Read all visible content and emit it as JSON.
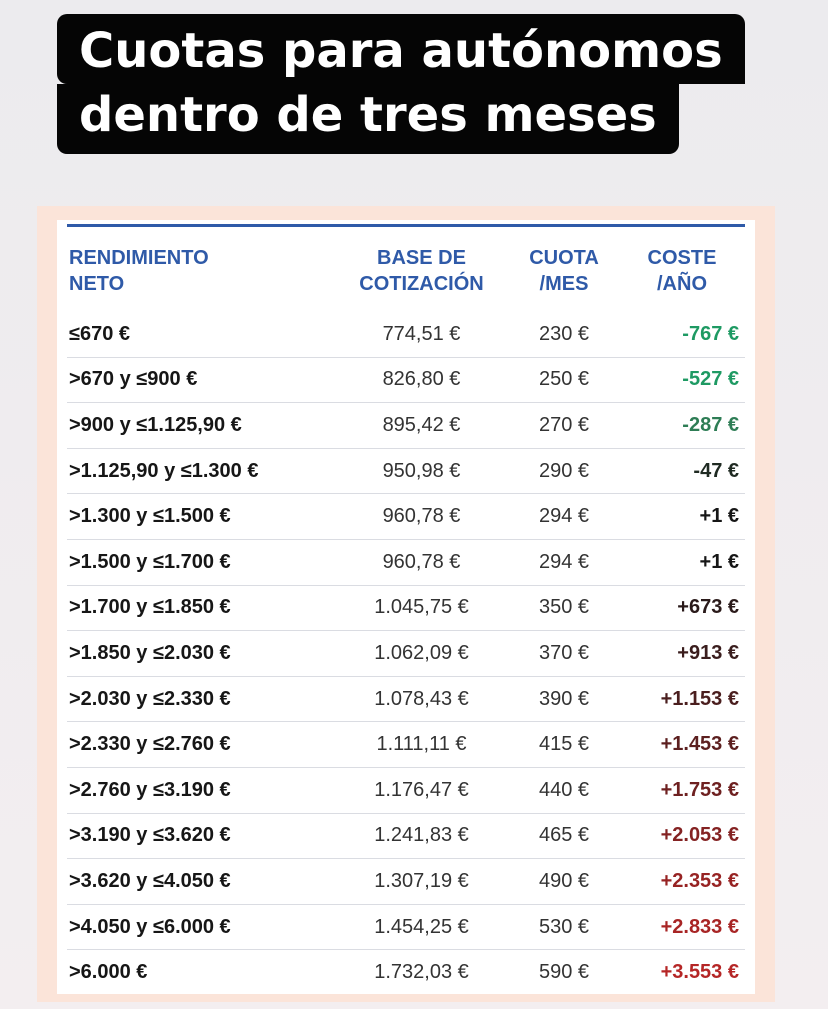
{
  "headline": {
    "line1": "Cuotas para autónomos",
    "line2": "dentro de tres meses"
  },
  "table": {
    "headers": {
      "col1": [
        "RENDIMIENTO",
        "NETO"
      ],
      "col2": [
        "BASE DE",
        "COTIZACIÓN"
      ],
      "col3": [
        "CUOTA",
        "/MES"
      ],
      "col4": [
        "COSTE",
        "/AÑO"
      ]
    },
    "rows": [
      {
        "rendimiento": "≤670 €",
        "base": "774,51 €",
        "cuota": "230 €",
        "coste": "-767 €",
        "color": "#1e9a63"
      },
      {
        "rendimiento": ">670 y ≤900 €",
        "base": "826,80 €",
        "cuota": "250 €",
        "coste": "-527 €",
        "color": "#1e9a63"
      },
      {
        "rendimiento": ">900 y ≤1.125,90 €",
        "base": "895,42 €",
        "cuota": "270 €",
        "coste": "-287 €",
        "color": "#2e7d55"
      },
      {
        "rendimiento": ">1.125,90 y ≤1.300 €",
        "base": "950,98 €",
        "cuota": "290 €",
        "coste": "-47 €",
        "color": "#1f2a22"
      },
      {
        "rendimiento": ">1.300 y ≤1.500 €",
        "base": "960,78 €",
        "cuota": "294 €",
        "coste": "+1 €",
        "color": "#161616"
      },
      {
        "rendimiento": ">1.500 y ≤1.700 €",
        "base": "960,78 €",
        "cuota": "294 €",
        "coste": "+1 €",
        "color": "#161616"
      },
      {
        "rendimiento": ">1.700 y ≤1.850 €",
        "base": "1.045,75 €",
        "cuota": "350 €",
        "coste": "+673 €",
        "color": "#2a1a1a"
      },
      {
        "rendimiento": ">1.850 y ≤2.030 €",
        "base": "1.062,09 €",
        "cuota": "370 €",
        "coste": "+913 €",
        "color": "#3a1d1d"
      },
      {
        "rendimiento": ">2.030 y ≤2.330 €",
        "base": "1.078,43 €",
        "cuota": "390 €",
        "coste": "+1.153 €",
        "color": "#4a1e1e"
      },
      {
        "rendimiento": ">2.330 y ≤2.760 €",
        "base": "1.111,11 €",
        "cuota": "415 €",
        "coste": "+1.453 €",
        "color": "#5c1f1f"
      },
      {
        "rendimiento": ">2.760 y ≤3.190 €",
        "base": "1.176,47 €",
        "cuota": "440 €",
        "coste": "+1.753 €",
        "color": "#6e2020"
      },
      {
        "rendimiento": ">3.190 y ≤3.620 €",
        "base": "1.241,83 €",
        "cuota": "465 €",
        "coste": "+2.053 €",
        "color": "#842222"
      },
      {
        "rendimiento": ">3.620 y ≤4.050 €",
        "base": "1.307,19 €",
        "cuota": "490 €",
        "coste": "+2.353 €",
        "color": "#972323"
      },
      {
        "rendimiento": ">4.050 y ≤6.000 €",
        "base": "1.454,25 €",
        "cuota": "530 €",
        "coste": "+2.833 €",
        "color": "#a82525"
      },
      {
        "rendimiento": ">6.000 €",
        "base": "1.732,03 €",
        "cuota": "590 €",
        "coste": "+3.553 €",
        "color": "#b52626"
      }
    ]
  }
}
